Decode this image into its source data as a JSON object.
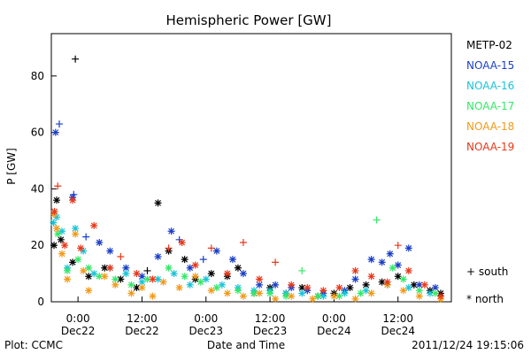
{
  "footer": {
    "plot_credit": "Plot: CCMC",
    "timestamp": "2011/12/24  19:15:06"
  },
  "chart_data": {
    "type": "scatter",
    "title": "Hemispheric Power [GW]",
    "xlabel": "Date and Time",
    "ylabel": "P [GW]",
    "x_axis": {
      "unit": "hours since 2011-12-22 00:00 UT",
      "range": [
        -5,
        70
      ],
      "ticks": [
        {
          "x": 0,
          "time": "0:00",
          "date": "Dec22"
        },
        {
          "x": 12,
          "time": "12:00",
          "date": "Dec22"
        },
        {
          "x": 24,
          "time": "0:00",
          "date": "Dec23"
        },
        {
          "x": 36,
          "time": "12:00",
          "date": "Dec23"
        },
        {
          "x": 48,
          "time": "0:00",
          "date": "Dec24"
        },
        {
          "x": 60,
          "time": "12:00",
          "date": "Dec24"
        }
      ]
    },
    "y_axis": {
      "range": [
        0,
        95
      ],
      "ticks": [
        0,
        20,
        40,
        60,
        80
      ]
    },
    "grid": false,
    "legend_position": "right",
    "marker_key": [
      {
        "marker": "+",
        "label": "south"
      },
      {
        "marker": "*",
        "label": "north"
      }
    ],
    "series": [
      {
        "name": "METP-02",
        "color": "#000000",
        "points": [
          {
            "x": -4.5,
            "y": 20,
            "hemi": "north"
          },
          {
            "x": -4,
            "y": 36,
            "hemi": "north"
          },
          {
            "x": -3.2,
            "y": 22,
            "hemi": "north"
          },
          {
            "x": -0.5,
            "y": 86,
            "hemi": "south"
          },
          {
            "x": -1,
            "y": 14,
            "hemi": "north"
          },
          {
            "x": 2,
            "y": 9,
            "hemi": "north"
          },
          {
            "x": 5,
            "y": 12,
            "hemi": "north"
          },
          {
            "x": 8,
            "y": 8,
            "hemi": "north"
          },
          {
            "x": 11,
            "y": 5,
            "hemi": "north"
          },
          {
            "x": 13,
            "y": 11,
            "hemi": "south"
          },
          {
            "x": 15,
            "y": 35,
            "hemi": "north"
          },
          {
            "x": 17,
            "y": 18,
            "hemi": "north"
          },
          {
            "x": 20,
            "y": 15,
            "hemi": "north"
          },
          {
            "x": 22,
            "y": 8,
            "hemi": "north"
          },
          {
            "x": 25,
            "y": 10,
            "hemi": "north"
          },
          {
            "x": 28,
            "y": 9,
            "hemi": "north"
          },
          {
            "x": 30,
            "y": 12,
            "hemi": "north"
          },
          {
            "x": 33,
            "y": 3,
            "hemi": "north"
          },
          {
            "x": 36,
            "y": 5,
            "hemi": "north"
          },
          {
            "x": 39,
            "y": 3,
            "hemi": "north"
          },
          {
            "x": 42,
            "y": 5,
            "hemi": "north"
          },
          {
            "x": 45,
            "y": 2,
            "hemi": "north"
          },
          {
            "x": 48,
            "y": 3,
            "hemi": "north"
          },
          {
            "x": 51,
            "y": 5,
            "hemi": "north"
          },
          {
            "x": 54,
            "y": 6,
            "hemi": "north"
          },
          {
            "x": 57,
            "y": 7,
            "hemi": "north"
          },
          {
            "x": 60,
            "y": 9,
            "hemi": "north"
          },
          {
            "x": 63,
            "y": 6,
            "hemi": "north"
          },
          {
            "x": 66,
            "y": 4,
            "hemi": "north"
          },
          {
            "x": 68,
            "y": 3,
            "hemi": "north"
          }
        ]
      },
      {
        "name": "NOAA-15",
        "color": "#1a3fc8",
        "points": [
          {
            "x": -4.2,
            "y": 60,
            "hemi": "north"
          },
          {
            "x": -3.5,
            "y": 63,
            "hemi": "south"
          },
          {
            "x": -1,
            "y": 37,
            "hemi": "north"
          },
          {
            "x": -0.8,
            "y": 38,
            "hemi": "south"
          },
          {
            "x": 1.5,
            "y": 23,
            "hemi": "south"
          },
          {
            "x": 4,
            "y": 21,
            "hemi": "north"
          },
          {
            "x": 6,
            "y": 18,
            "hemi": "north"
          },
          {
            "x": 9,
            "y": 12,
            "hemi": "north"
          },
          {
            "x": 12,
            "y": 9,
            "hemi": "north"
          },
          {
            "x": 15,
            "y": 16,
            "hemi": "north"
          },
          {
            "x": 17.5,
            "y": 25,
            "hemi": "north"
          },
          {
            "x": 19,
            "y": 22,
            "hemi": "south"
          },
          {
            "x": 21,
            "y": 12,
            "hemi": "north"
          },
          {
            "x": 23.5,
            "y": 15,
            "hemi": "south"
          },
          {
            "x": 26,
            "y": 18,
            "hemi": "north"
          },
          {
            "x": 29,
            "y": 15,
            "hemi": "north"
          },
          {
            "x": 31,
            "y": 10,
            "hemi": "north"
          },
          {
            "x": 34,
            "y": 6,
            "hemi": "north"
          },
          {
            "x": 37,
            "y": 6,
            "hemi": "north"
          },
          {
            "x": 40,
            "y": 5,
            "hemi": "north"
          },
          {
            "x": 43,
            "y": 4,
            "hemi": "north"
          },
          {
            "x": 46,
            "y": 3,
            "hemi": "north"
          },
          {
            "x": 50,
            "y": 4,
            "hemi": "north"
          },
          {
            "x": 52,
            "y": 8,
            "hemi": "north"
          },
          {
            "x": 55,
            "y": 15,
            "hemi": "north"
          },
          {
            "x": 57,
            "y": 14,
            "hemi": "north"
          },
          {
            "x": 58.5,
            "y": 17,
            "hemi": "north"
          },
          {
            "x": 60,
            "y": 13,
            "hemi": "north"
          },
          {
            "x": 62,
            "y": 19,
            "hemi": "north"
          },
          {
            "x": 64,
            "y": 6,
            "hemi": "north"
          },
          {
            "x": 67,
            "y": 5,
            "hemi": "north"
          }
        ]
      },
      {
        "name": "NOAA-16",
        "color": "#18c4d8",
        "points": [
          {
            "x": -4.6,
            "y": 28,
            "hemi": "north"
          },
          {
            "x": -4,
            "y": 30,
            "hemi": "north"
          },
          {
            "x": -3,
            "y": 25,
            "hemi": "north"
          },
          {
            "x": -2,
            "y": 12,
            "hemi": "north"
          },
          {
            "x": -0.5,
            "y": 26,
            "hemi": "north"
          },
          {
            "x": 1,
            "y": 18,
            "hemi": "north"
          },
          {
            "x": 3,
            "y": 10,
            "hemi": "north"
          },
          {
            "x": 6,
            "y": 12,
            "hemi": "north"
          },
          {
            "x": 9,
            "y": 10,
            "hemi": "north"
          },
          {
            "x": 12,
            "y": 7,
            "hemi": "north"
          },
          {
            "x": 15,
            "y": 8,
            "hemi": "north"
          },
          {
            "x": 18,
            "y": 10,
            "hemi": "north"
          },
          {
            "x": 21,
            "y": 6,
            "hemi": "north"
          },
          {
            "x": 24,
            "y": 8,
            "hemi": "north"
          },
          {
            "x": 27,
            "y": 6,
            "hemi": "north"
          },
          {
            "x": 30,
            "y": 5,
            "hemi": "north"
          },
          {
            "x": 33,
            "y": 4,
            "hemi": "north"
          },
          {
            "x": 36,
            "y": 4,
            "hemi": "north"
          },
          {
            "x": 39,
            "y": 3,
            "hemi": "north"
          },
          {
            "x": 42,
            "y": 3,
            "hemi": "north"
          },
          {
            "x": 46,
            "y": 2,
            "hemi": "north"
          },
          {
            "x": 50,
            "y": 3,
            "hemi": "north"
          },
          {
            "x": 54,
            "y": 4,
            "hemi": "north"
          },
          {
            "x": 58,
            "y": 6,
            "hemi": "north"
          },
          {
            "x": 62,
            "y": 5,
            "hemi": "north"
          },
          {
            "x": 66,
            "y": 3,
            "hemi": "north"
          }
        ]
      },
      {
        "name": "NOAA-17",
        "color": "#34e868",
        "points": [
          {
            "x": -3.8,
            "y": 24,
            "hemi": "north"
          },
          {
            "x": -2,
            "y": 11,
            "hemi": "north"
          },
          {
            "x": 0,
            "y": 15,
            "hemi": "north"
          },
          {
            "x": 2,
            "y": 12,
            "hemi": "north"
          },
          {
            "x": 4,
            "y": 9,
            "hemi": "north"
          },
          {
            "x": 7,
            "y": 8,
            "hemi": "north"
          },
          {
            "x": 10,
            "y": 6,
            "hemi": "north"
          },
          {
            "x": 13,
            "y": 8,
            "hemi": "north"
          },
          {
            "x": 17,
            "y": 12,
            "hemi": "north"
          },
          {
            "x": 20,
            "y": 9,
            "hemi": "north"
          },
          {
            "x": 23,
            "y": 7,
            "hemi": "north"
          },
          {
            "x": 26,
            "y": 5,
            "hemi": "north"
          },
          {
            "x": 30,
            "y": 4,
            "hemi": "north"
          },
          {
            "x": 33,
            "y": 3,
            "hemi": "north"
          },
          {
            "x": 36,
            "y": 3,
            "hemi": "north"
          },
          {
            "x": 39,
            "y": 2,
            "hemi": "north"
          },
          {
            "x": 42,
            "y": 11,
            "hemi": "south"
          },
          {
            "x": 45,
            "y": 2,
            "hemi": "north"
          },
          {
            "x": 49,
            "y": 2,
            "hemi": "north"
          },
          {
            "x": 53,
            "y": 3,
            "hemi": "north"
          },
          {
            "x": 56,
            "y": 29,
            "hemi": "south"
          },
          {
            "x": 59,
            "y": 12,
            "hemi": "north"
          },
          {
            "x": 61,
            "y": 8,
            "hemi": "north"
          },
          {
            "x": 64,
            "y": 4,
            "hemi": "north"
          },
          {
            "x": 67,
            "y": 3,
            "hemi": "north"
          }
        ]
      },
      {
        "name": "NOAA-18",
        "color": "#f09a18",
        "points": [
          {
            "x": -4.5,
            "y": 31,
            "hemi": "north"
          },
          {
            "x": -4,
            "y": 26,
            "hemi": "north"
          },
          {
            "x": -3,
            "y": 17,
            "hemi": "north"
          },
          {
            "x": -2,
            "y": 8,
            "hemi": "north"
          },
          {
            "x": -0.5,
            "y": 24,
            "hemi": "north"
          },
          {
            "x": 1,
            "y": 11,
            "hemi": "north"
          },
          {
            "x": 2,
            "y": 4,
            "hemi": "north"
          },
          {
            "x": 5,
            "y": 9,
            "hemi": "north"
          },
          {
            "x": 7,
            "y": 6,
            "hemi": "north"
          },
          {
            "x": 10,
            "y": 3,
            "hemi": "north"
          },
          {
            "x": 12,
            "y": 5,
            "hemi": "north"
          },
          {
            "x": 14,
            "y": 2,
            "hemi": "north"
          },
          {
            "x": 16,
            "y": 7,
            "hemi": "north"
          },
          {
            "x": 19,
            "y": 5,
            "hemi": "north"
          },
          {
            "x": 22,
            "y": 9,
            "hemi": "north"
          },
          {
            "x": 25,
            "y": 4,
            "hemi": "north"
          },
          {
            "x": 28,
            "y": 3,
            "hemi": "north"
          },
          {
            "x": 31,
            "y": 2,
            "hemi": "north"
          },
          {
            "x": 34,
            "y": 3,
            "hemi": "north"
          },
          {
            "x": 37,
            "y": 1,
            "hemi": "north"
          },
          {
            "x": 40,
            "y": 2,
            "hemi": "north"
          },
          {
            "x": 44,
            "y": 1,
            "hemi": "north"
          },
          {
            "x": 48,
            "y": 2,
            "hemi": "north"
          },
          {
            "x": 52,
            "y": 1,
            "hemi": "north"
          },
          {
            "x": 55,
            "y": 3,
            "hemi": "north"
          },
          {
            "x": 58,
            "y": 6,
            "hemi": "north"
          },
          {
            "x": 61,
            "y": 4,
            "hemi": "north"
          },
          {
            "x": 64,
            "y": 2,
            "hemi": "north"
          },
          {
            "x": 68,
            "y": 1,
            "hemi": "north"
          }
        ]
      },
      {
        "name": "NOAA-19",
        "color": "#e8381a",
        "points": [
          {
            "x": -4.4,
            "y": 32,
            "hemi": "north"
          },
          {
            "x": -3.8,
            "y": 41,
            "hemi": "south"
          },
          {
            "x": -2.5,
            "y": 20,
            "hemi": "north"
          },
          {
            "x": -1,
            "y": 36,
            "hemi": "north"
          },
          {
            "x": 0.5,
            "y": 19,
            "hemi": "north"
          },
          {
            "x": 3,
            "y": 27,
            "hemi": "north"
          },
          {
            "x": 6,
            "y": 12,
            "hemi": "north"
          },
          {
            "x": 8,
            "y": 16,
            "hemi": "south"
          },
          {
            "x": 11,
            "y": 10,
            "hemi": "north"
          },
          {
            "x": 14,
            "y": 8,
            "hemi": "north"
          },
          {
            "x": 17,
            "y": 19,
            "hemi": "south"
          },
          {
            "x": 19.5,
            "y": 21,
            "hemi": "north"
          },
          {
            "x": 22,
            "y": 13,
            "hemi": "north"
          },
          {
            "x": 25,
            "y": 19,
            "hemi": "south"
          },
          {
            "x": 28,
            "y": 10,
            "hemi": "north"
          },
          {
            "x": 31,
            "y": 21,
            "hemi": "south"
          },
          {
            "x": 34,
            "y": 8,
            "hemi": "north"
          },
          {
            "x": 37,
            "y": 14,
            "hemi": "south"
          },
          {
            "x": 40,
            "y": 6,
            "hemi": "north"
          },
          {
            "x": 43,
            "y": 5,
            "hemi": "north"
          },
          {
            "x": 46,
            "y": 4,
            "hemi": "north"
          },
          {
            "x": 49,
            "y": 5,
            "hemi": "north"
          },
          {
            "x": 52,
            "y": 11,
            "hemi": "north"
          },
          {
            "x": 55,
            "y": 9,
            "hemi": "north"
          },
          {
            "x": 58,
            "y": 7,
            "hemi": "north"
          },
          {
            "x": 60,
            "y": 20,
            "hemi": "south"
          },
          {
            "x": 62,
            "y": 11,
            "hemi": "north"
          },
          {
            "x": 65,
            "y": 6,
            "hemi": "north"
          },
          {
            "x": 68,
            "y": 2,
            "hemi": "north"
          }
        ]
      }
    ]
  }
}
